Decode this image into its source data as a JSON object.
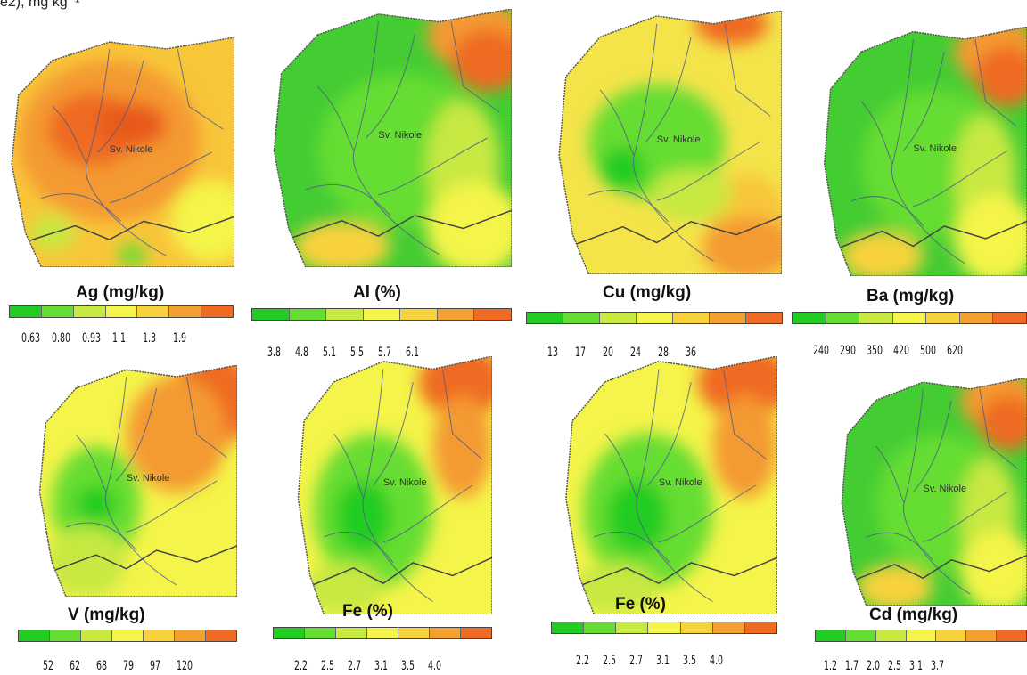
{
  "top_text": "e2), mg kg⁻¹",
  "town_label": "Sv. Nikole",
  "ramp_colors": [
    "#22cc22",
    "#66dd33",
    "#c8e842",
    "#f4f44a",
    "#f8d23c",
    "#f4a030",
    "#ef6a22"
  ],
  "panels": [
    {
      "id": "ag",
      "title": "Ag (mg/kg)",
      "ticks": [
        "0.63",
        "0.80",
        "0.93",
        "1.1",
        "1.3",
        "1.9"
      ],
      "pattern": "high-center"
    },
    {
      "id": "al",
      "title": "Al (%)",
      "ticks": [
        "3.8",
        "4.8",
        "5.1",
        "5.5",
        "5.7",
        "6.1"
      ],
      "pattern": "green-west"
    },
    {
      "id": "cu",
      "title": "Cu (mg/kg)",
      "ticks": [
        "13",
        "17",
        "20",
        "24",
        "28",
        "36"
      ],
      "pattern": "yellow-mixed"
    },
    {
      "id": "ba",
      "title": "Ba (mg/kg)",
      "ticks": [
        "240",
        "290",
        "350",
        "420",
        "500",
        "620"
      ],
      "pattern": "green-west"
    },
    {
      "id": "v",
      "title": "V (mg/kg)",
      "ticks": [
        "52",
        "62",
        "68",
        "79",
        "97",
        "120"
      ],
      "pattern": "yellow-northeast"
    },
    {
      "id": "fe1",
      "title": "Fe (%)",
      "ticks": [
        "2.2",
        "2.5",
        "2.7",
        "3.1",
        "3.5",
        "4.0"
      ],
      "pattern": "green-south"
    },
    {
      "id": "fe2",
      "title": "Fe (%)",
      "ticks": [
        "2.2",
        "2.5",
        "2.7",
        "3.1",
        "3.5",
        "4.0"
      ],
      "pattern": "green-south"
    },
    {
      "id": "cd",
      "title": "Cd (mg/kg)",
      "ticks": [
        "1.2",
        "1.7",
        "2.0",
        "2.5",
        "3.1",
        "3.7"
      ],
      "pattern": "green-west"
    }
  ]
}
